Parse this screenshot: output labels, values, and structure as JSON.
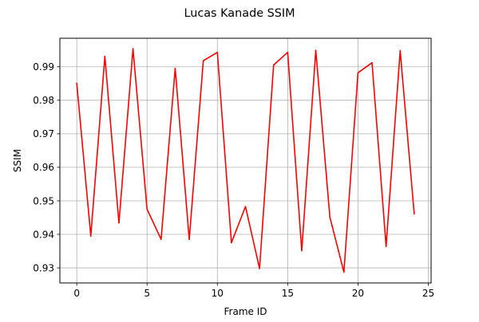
{
  "chart_data": {
    "type": "line",
    "title": "Lucas Kanade SSIM",
    "xlabel": "Frame ID",
    "ylabel": "SSIM",
    "xlim": [
      -1.2,
      25.2
    ],
    "ylim": [
      0.9255,
      0.9985
    ],
    "x_ticks": [
      0,
      5,
      10,
      15,
      20,
      25
    ],
    "y_ticks": [
      0.93,
      0.94,
      0.95,
      0.96,
      0.97,
      0.98,
      0.99
    ],
    "x_tick_labels": [
      "0",
      "5",
      "10",
      "15",
      "20",
      "25"
    ],
    "y_tick_labels": [
      "0.93",
      "0.94",
      "0.95",
      "0.96",
      "0.97",
      "0.98",
      "0.99"
    ],
    "grid": true,
    "legend": "none",
    "x": [
      0,
      1,
      2,
      3,
      4,
      5,
      6,
      7,
      8,
      9,
      10,
      11,
      12,
      13,
      14,
      15,
      16,
      17,
      18,
      19,
      20,
      21,
      22,
      23,
      24
    ],
    "series": [
      {
        "color": "#ff0000",
        "values": [
          0.9851,
          0.9395,
          0.9931,
          0.9434,
          0.9954,
          0.9475,
          0.9385,
          0.9895,
          0.9385,
          0.9918,
          0.9943,
          0.9375,
          0.9483,
          0.9298,
          0.9905,
          0.9943,
          0.9351,
          0.9949,
          0.9452,
          0.9287,
          0.9882,
          0.9912,
          0.9364,
          0.9948,
          0.9461
        ]
      }
    ]
  }
}
